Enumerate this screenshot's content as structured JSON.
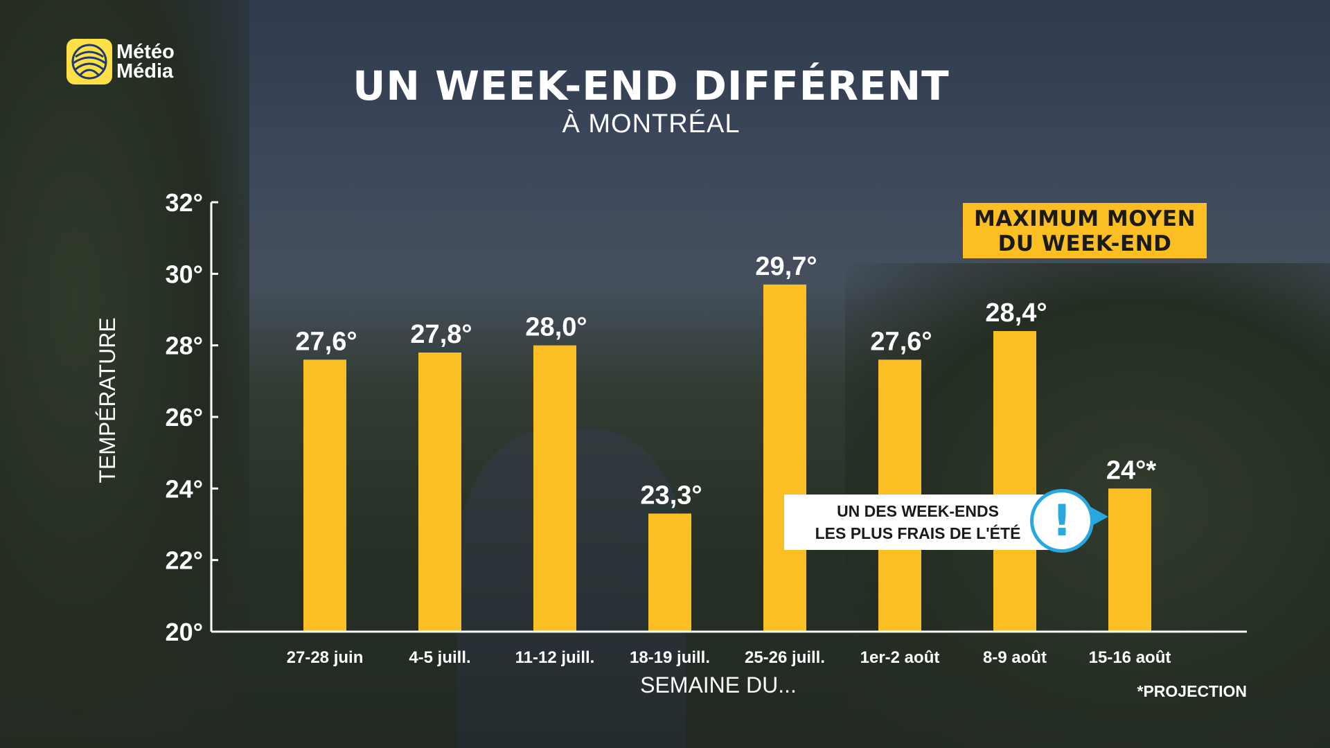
{
  "brand": {
    "line1": "Météo",
    "line2": "Média",
    "logo_color": "#fde047"
  },
  "title": "UN WEEK-END DIFFÉRENT",
  "subtitle": "À MONTRÉAL",
  "legend": {
    "line1": "MAXIMUM MOYEN",
    "line2": "DU WEEK-END",
    "color": "#fbbf24"
  },
  "callout": {
    "line1": "UN DES WEEK-ENDS",
    "line2": "LES PLUS FRAIS DE L'ÉTÉ",
    "icon": "exclamation-icon",
    "accent": "#29a8e0"
  },
  "footnote": "*PROJECTION",
  "chart_data": {
    "type": "bar",
    "title": "UN WEEK-END DIFFÉRENT",
    "subtitle": "À MONTRÉAL",
    "xlabel": "SEMAINE DU...",
    "ylabel": "TEMPÉRATURE",
    "ylim": [
      20,
      32
    ],
    "yticks": [
      20,
      22,
      24,
      26,
      28,
      30,
      32
    ],
    "ytick_labels": [
      "20°",
      "22°",
      "24°",
      "26°",
      "28°",
      "30°",
      "32°"
    ],
    "categories": [
      "27-28 juin",
      "4-5 juill.",
      "11-12 juill.",
      "18-19 juill.",
      "25-26 juill.",
      "1er-2 août",
      "8-9 août",
      "15-16 août"
    ],
    "values": [
      27.6,
      27.8,
      28.0,
      23.3,
      29.7,
      27.6,
      28.4,
      24
    ],
    "value_labels": [
      "27,6°",
      "27,8°",
      "28,0°",
      "23,3°",
      "29,7°",
      "27,6°",
      "28,4°",
      "24°*"
    ],
    "bar_color": "#fbbf24",
    "grid": false
  }
}
